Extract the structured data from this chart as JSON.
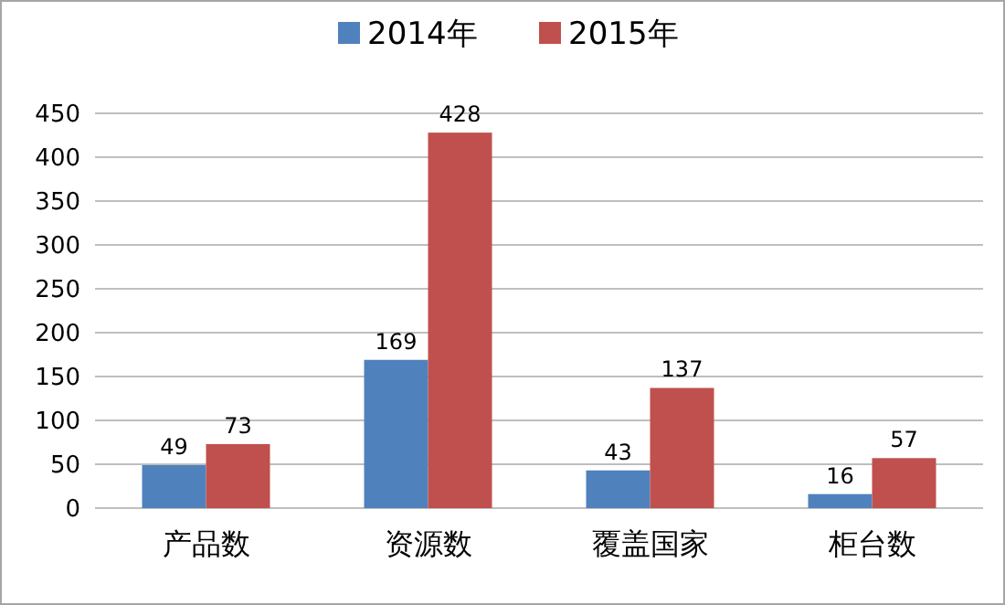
{
  "chart_data": {
    "type": "bar",
    "categories": [
      "产品数",
      "资源数",
      "覆盖国家",
      "柜台数"
    ],
    "series": [
      {
        "name": "2014年",
        "color": "#4f81bd",
        "values": [
          49,
          169,
          43,
          16
        ]
      },
      {
        "name": "2015年",
        "color": "#c0504d",
        "values": [
          73,
          428,
          137,
          57
        ]
      }
    ],
    "ylim": [
      0,
      450
    ],
    "yticks": [
      0,
      50,
      100,
      150,
      200,
      250,
      300,
      350,
      400,
      450
    ],
    "grid": "y",
    "legend": "top",
    "data_labels": true
  }
}
